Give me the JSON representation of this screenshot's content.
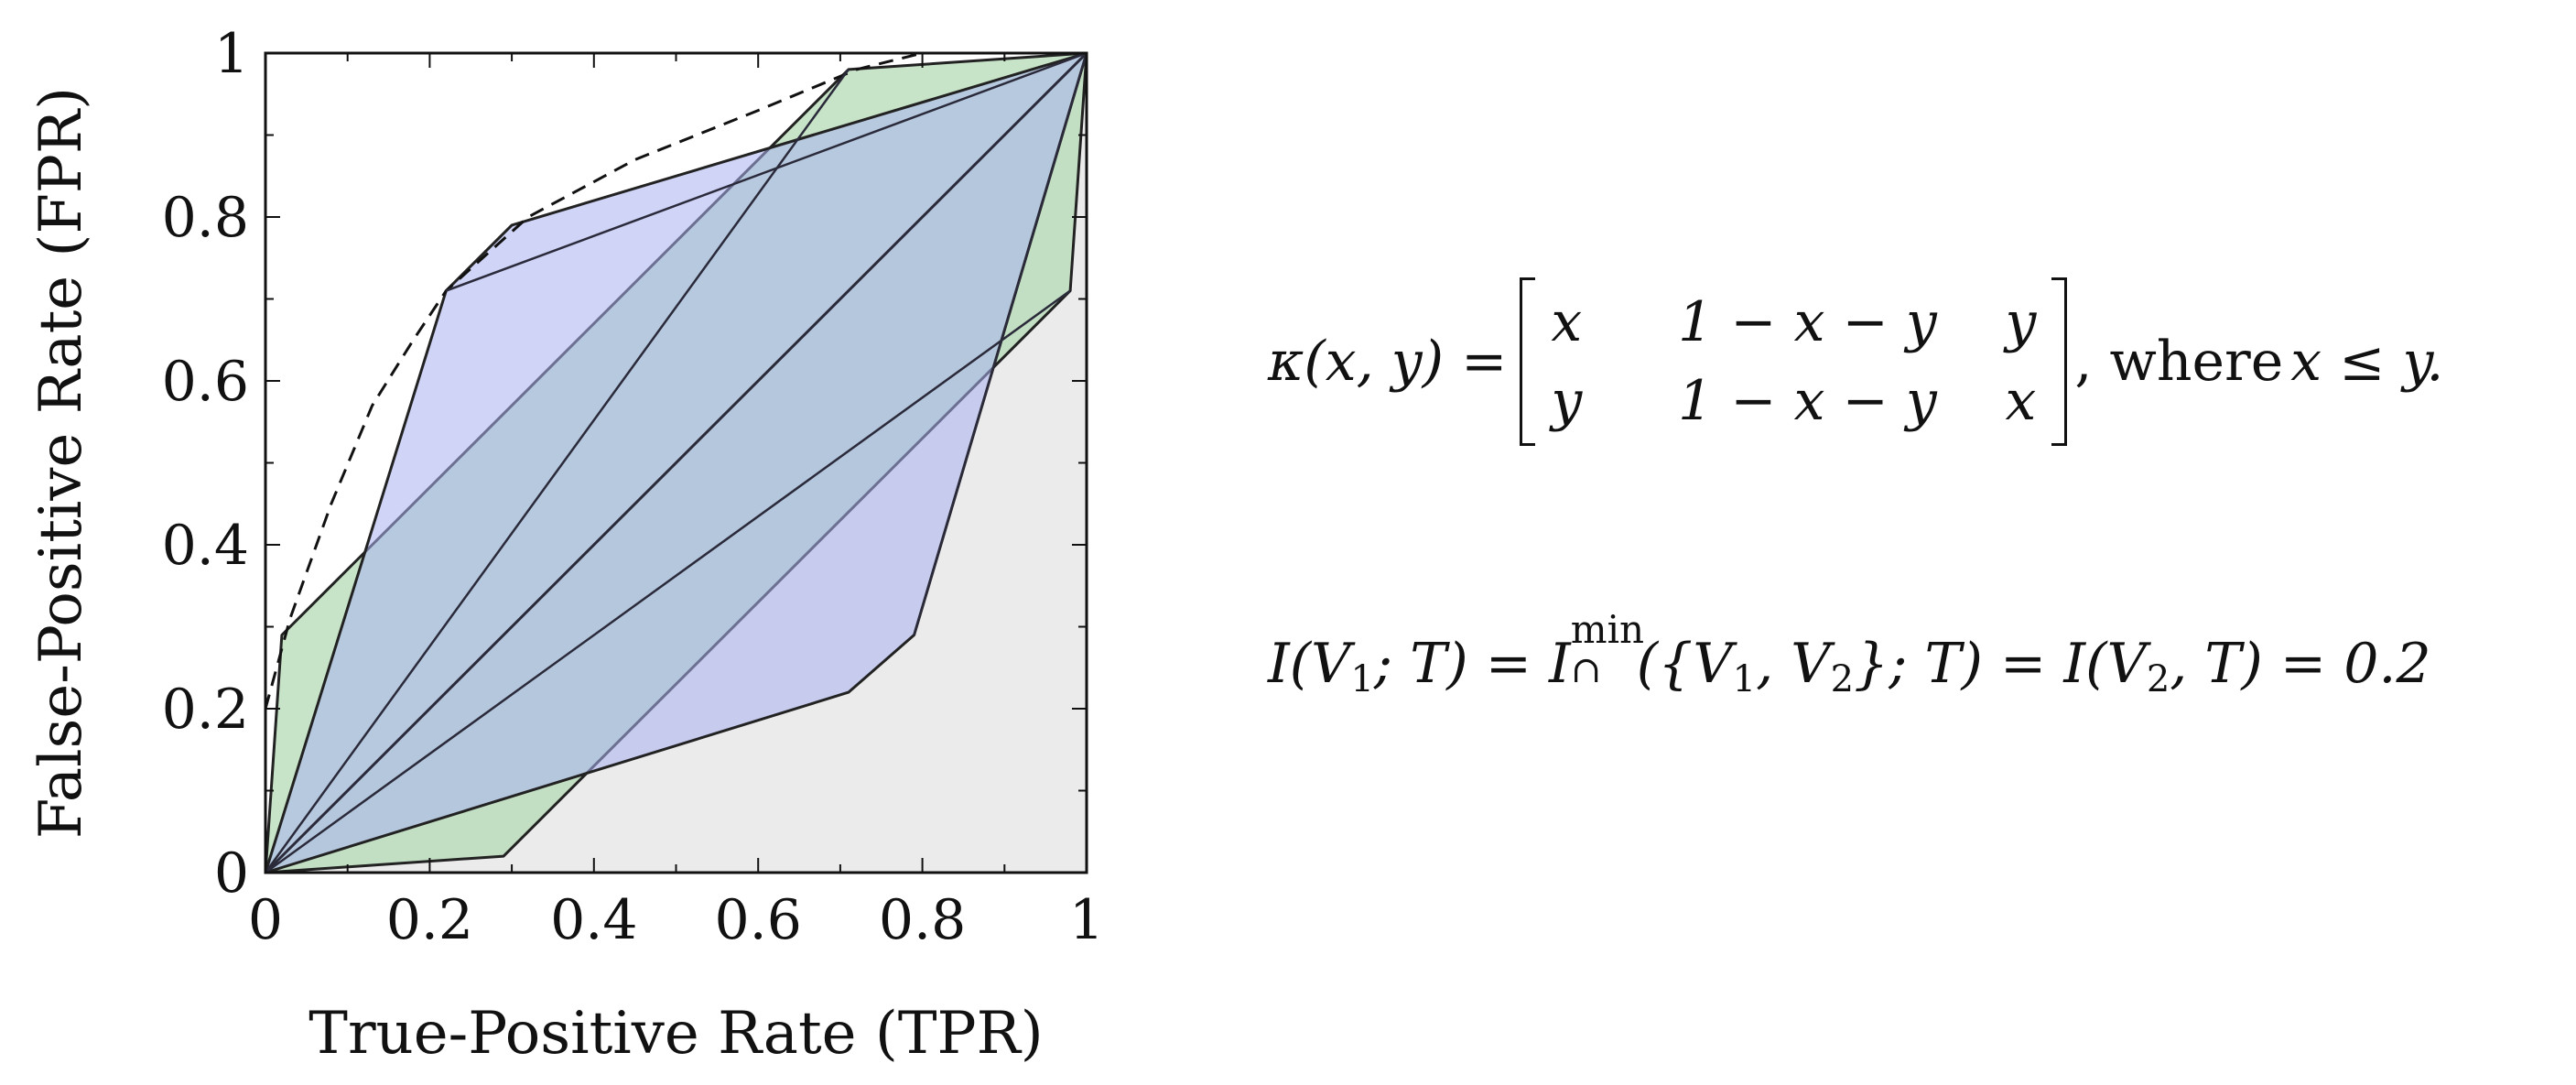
{
  "chart_data": {
    "type": "area",
    "xlabel": "True-Positive Rate (TPR)",
    "ylabel": "False-Positive Rate (FPR)",
    "xlim": [
      0,
      1
    ],
    "ylim": [
      0,
      1
    ],
    "x_ticks": [
      "0",
      "0.2",
      "0.4",
      "0.6",
      "0.8",
      "1"
    ],
    "y_ticks": [
      "0",
      "0.2",
      "0.4",
      "0.6",
      "0.8",
      "1"
    ],
    "grid": false,
    "series": [
      {
        "role": "gray region below diagonal",
        "color": "#ebebeb",
        "points": [
          [
            0,
            0
          ],
          [
            1,
            0
          ],
          [
            1,
            1
          ]
        ]
      },
      {
        "role": "green polygon",
        "color": "#b5dbb5",
        "points": [
          [
            0,
            0
          ],
          [
            0.02,
            0.29
          ],
          [
            0.71,
            0.98
          ],
          [
            1,
            1
          ],
          [
            0.98,
            0.71
          ],
          [
            0.29,
            0.02
          ],
          [
            0,
            0
          ]
        ]
      },
      {
        "role": "blue polygon",
        "color": "#aab2f2",
        "points": [
          [
            0,
            0
          ],
          [
            0.22,
            0.71
          ],
          [
            0.3,
            0.79
          ],
          [
            1,
            1
          ],
          [
            0.79,
            0.29
          ],
          [
            0.71,
            0.22
          ],
          [
            0,
            0
          ]
        ]
      },
      {
        "role": "dashed curve",
        "style": "dashed",
        "color": "#111111",
        "points": [
          [
            0,
            0.2
          ],
          [
            0.03,
            0.31
          ],
          [
            0.08,
            0.45
          ],
          [
            0.13,
            0.57
          ],
          [
            0.18,
            0.65
          ],
          [
            0.22,
            0.71
          ],
          [
            0.32,
            0.8
          ],
          [
            0.45,
            0.87
          ],
          [
            0.6,
            0.93
          ],
          [
            0.72,
            0.98
          ],
          [
            0.8,
            1
          ]
        ]
      },
      {
        "role": "diagonal line",
        "color": "#111111",
        "points": [
          [
            0,
            0
          ],
          [
            1,
            1
          ]
        ]
      }
    ]
  },
  "equations": {
    "eq1": {
      "lhs": "κ(x, y) = ",
      "rows": [
        [
          "x",
          "1 − x − y",
          "y"
        ],
        [
          "y",
          "1 − x − y",
          "x"
        ]
      ],
      "suffix_text": ", where ",
      "condition": "x ≤ y."
    },
    "eq2": {
      "part1": "I(V",
      "sub1": "1",
      "part2": "; T) = I",
      "sup_min": "min",
      "cap": "∩",
      "part3": "({V",
      "sub2": "1",
      "part4": ", V",
      "sub3": "2",
      "part5": "}; T) = I(V",
      "sub4": "2",
      "part6": ", T) = 0.2"
    }
  }
}
